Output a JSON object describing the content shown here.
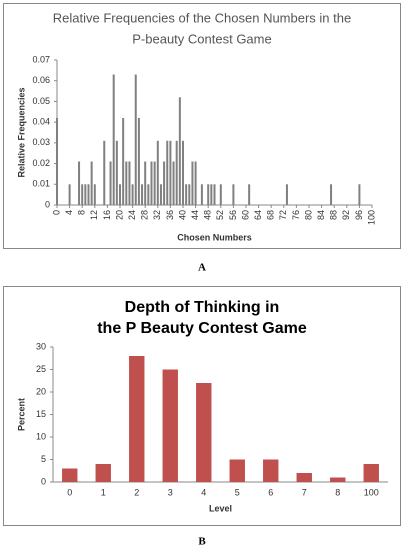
{
  "chart_data": [
    {
      "type": "bar",
      "title": [
        "Relative Frequencies of the Chosen Numbers in the",
        "P-beauty Contest Game"
      ],
      "x_label": "Chosen Numbers",
      "y_label": "Relative Frequencies",
      "label": "A",
      "x": [
        0,
        4,
        7,
        8,
        9,
        10,
        11,
        12,
        15,
        17,
        18,
        19,
        20,
        21,
        22,
        23,
        24,
        25,
        26,
        27,
        28,
        29,
        30,
        31,
        32,
        33,
        34,
        35,
        36,
        37,
        38,
        39,
        40,
        41,
        42,
        43,
        44,
        46,
        48,
        49,
        50,
        52,
        56,
        61,
        73,
        87,
        96
      ],
      "values": [
        0.042,
        0.01,
        0.021,
        0.01,
        0.01,
        0.01,
        0.021,
        0.01,
        0.031,
        0.021,
        0.063,
        0.031,
        0.01,
        0.042,
        0.021,
        0.021,
        0.01,
        0.063,
        0.042,
        0.01,
        0.021,
        0.01,
        0.021,
        0.021,
        0.031,
        0.01,
        0.021,
        0.031,
        0.031,
        0.021,
        0.031,
        0.052,
        0.031,
        0.01,
        0.01,
        0.021,
        0.021,
        0.01,
        0.01,
        0.01,
        0.01,
        0.01,
        0.01,
        0.01,
        0.01,
        0.01,
        0.01
      ],
      "color": "#808080",
      "xlim": [
        0,
        100
      ],
      "xticks": [
        0,
        4,
        8,
        12,
        16,
        20,
        24,
        28,
        32,
        36,
        40,
        44,
        48,
        52,
        56,
        60,
        64,
        68,
        72,
        76,
        80,
        84,
        88,
        92,
        96,
        100
      ],
      "ylim": [
        0,
        0.07
      ],
      "yticks": [
        0,
        0.01,
        0.02,
        0.03,
        0.04,
        0.05,
        0.06,
        0.07
      ]
    },
    {
      "type": "bar",
      "title": [
        "Depth of Thinking in",
        "the P Beauty Contest Game"
      ],
      "x_label": "Level",
      "y_label": "Percent",
      "label": "B",
      "categories": [
        "0",
        "1",
        "2",
        "3",
        "4",
        "5",
        "6",
        "7",
        "8",
        "100"
      ],
      "values": [
        3,
        4,
        28,
        25,
        22,
        5,
        5,
        2,
        1,
        4
      ],
      "color": "#c0504d",
      "ylim": [
        0,
        30
      ],
      "yticks": [
        0,
        5,
        10,
        15,
        20,
        25,
        30
      ]
    }
  ]
}
